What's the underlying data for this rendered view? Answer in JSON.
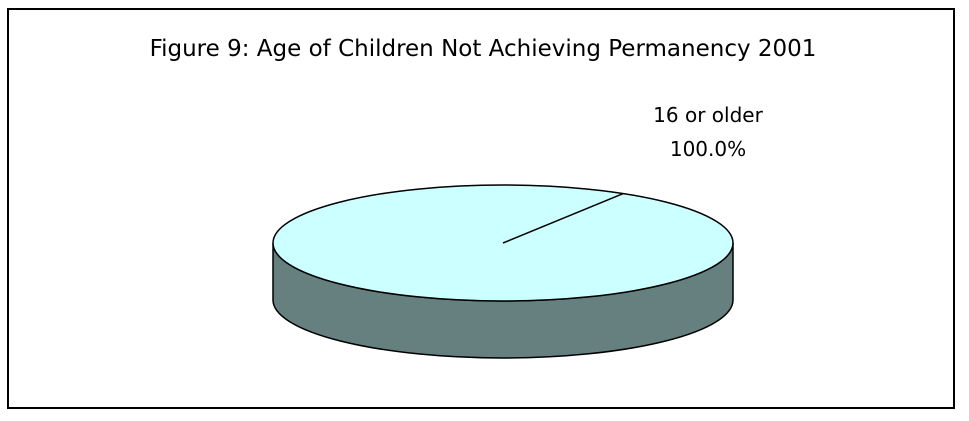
{
  "chart_data": {
    "type": "pie",
    "title": "Figure 9: Age of Children Not Achieving Permanency 2001",
    "slices": [
      {
        "label": "16 or older",
        "value": 100.0,
        "value_label": "100.0%",
        "top_color": "#ccffff",
        "side_color": "#668080"
      }
    ],
    "legend": "none",
    "style": "3d"
  }
}
